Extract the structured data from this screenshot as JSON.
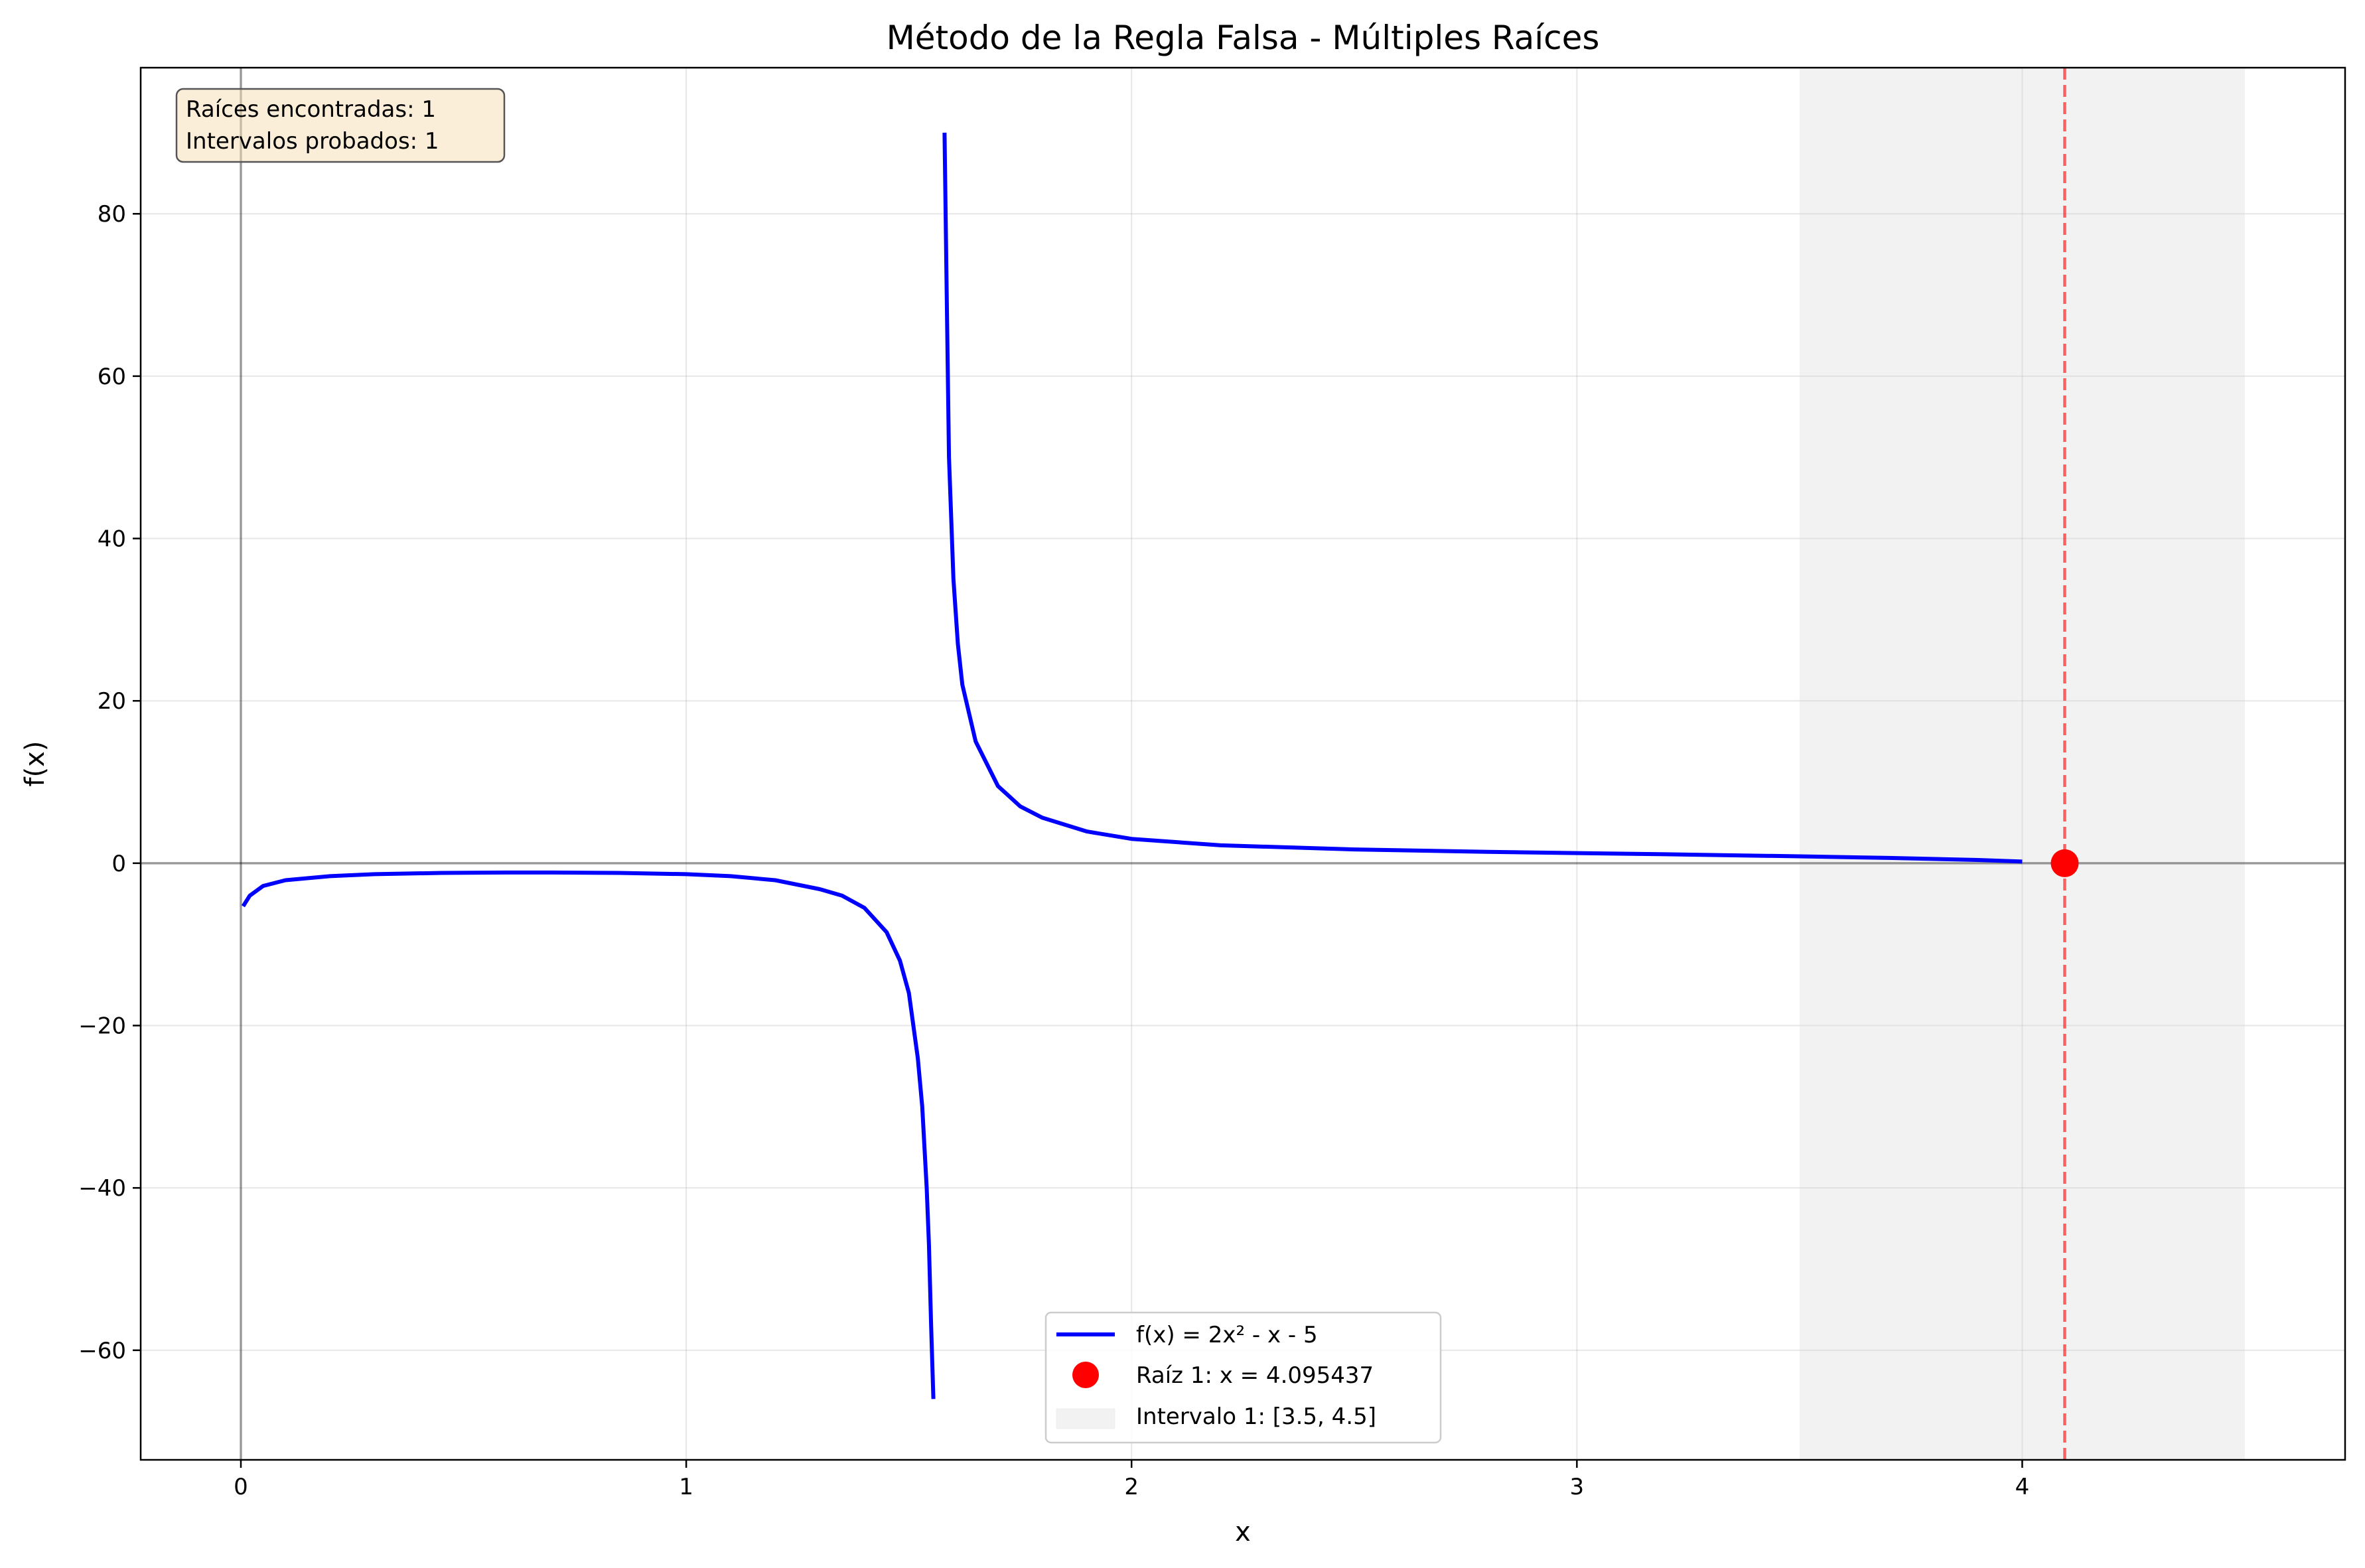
{
  "chart_data": {
    "type": "line",
    "title": "Método de la Regla Falsa - Múltiples Raíces",
    "xlabel": "x",
    "ylabel": "f(x)",
    "xlim": [
      -0.225,
      4.725
    ],
    "ylim": [
      -73.5,
      98.0
    ],
    "x_ticks": [
      0,
      1,
      2,
      3,
      4
    ],
    "y_ticks": [
      -60,
      -40,
      -20,
      0,
      20,
      40,
      60,
      80
    ],
    "x_tick_labels": [
      "0",
      "1",
      "2",
      "3",
      "4"
    ],
    "y_tick_labels": [
      "−60",
      "−40",
      "−20",
      "0",
      "20",
      "40",
      "60",
      "80"
    ],
    "grid": true,
    "legend_position": "lower-center",
    "series": [
      {
        "name": "f(x) = 2x² - x - 5",
        "color": "#0000ff",
        "segments": [
          {
            "x": [
              0.005,
              0.02,
              0.05,
              0.1,
              0.2,
              0.3,
              0.45,
              0.6,
              0.7,
              0.85,
              1.0,
              1.1,
              1.2,
              1.3,
              1.35,
              1.4,
              1.45,
              1.48,
              1.5,
              1.52,
              1.53,
              1.54,
              1.545,
              1.55,
              1.555
            ],
            "y": [
              -5.3,
              -4.0,
              -2.8,
              -2.1,
              -1.6,
              -1.35,
              -1.2,
              -1.15,
              -1.15,
              -1.2,
              -1.35,
              -1.6,
              -2.1,
              -3.2,
              -4.0,
              -5.5,
              -8.5,
              -12.0,
              -16.0,
              -24.0,
              -30.0,
              -40.0,
              -47.0,
              -57.0,
              -66.0
            ]
          },
          {
            "x": [
              1.58,
              1.585,
              1.59,
              1.6,
              1.61,
              1.62,
              1.65,
              1.7,
              1.75,
              1.8,
              1.9,
              2.0,
              2.2,
              2.5,
              2.8,
              3.0,
              3.2,
              3.5,
              3.7,
              3.9,
              4.0
            ],
            "y": [
              90.0,
              70.0,
              50.0,
              35.0,
              27.0,
              22.0,
              15.0,
              9.5,
              7.0,
              5.6,
              3.9,
              3.0,
              2.2,
              1.7,
              1.4,
              1.25,
              1.1,
              0.85,
              0.65,
              0.4,
              0.2
            ]
          }
        ]
      },
      {
        "name": "Raíz 1: x = 4.095437",
        "color": "#ff0000",
        "type": "scatter",
        "x": [
          4.095437
        ],
        "y": [
          0
        ]
      }
    ],
    "intervals": [
      {
        "name": "Intervalo 1: [3.5, 4.5]",
        "x_start": 3.5,
        "x_end": 4.5,
        "color": "#d3d3d3"
      }
    ],
    "reference_lines": {
      "vertical_root": 4.095437,
      "vertical_root_color": "#ff0000",
      "horizontal_zero": 0,
      "vertical_zero": 0
    },
    "info_box": {
      "line1": "Raíces encontradas: 1",
      "line2": "Intervalos probados: 1",
      "background": "#f5deb3"
    }
  }
}
